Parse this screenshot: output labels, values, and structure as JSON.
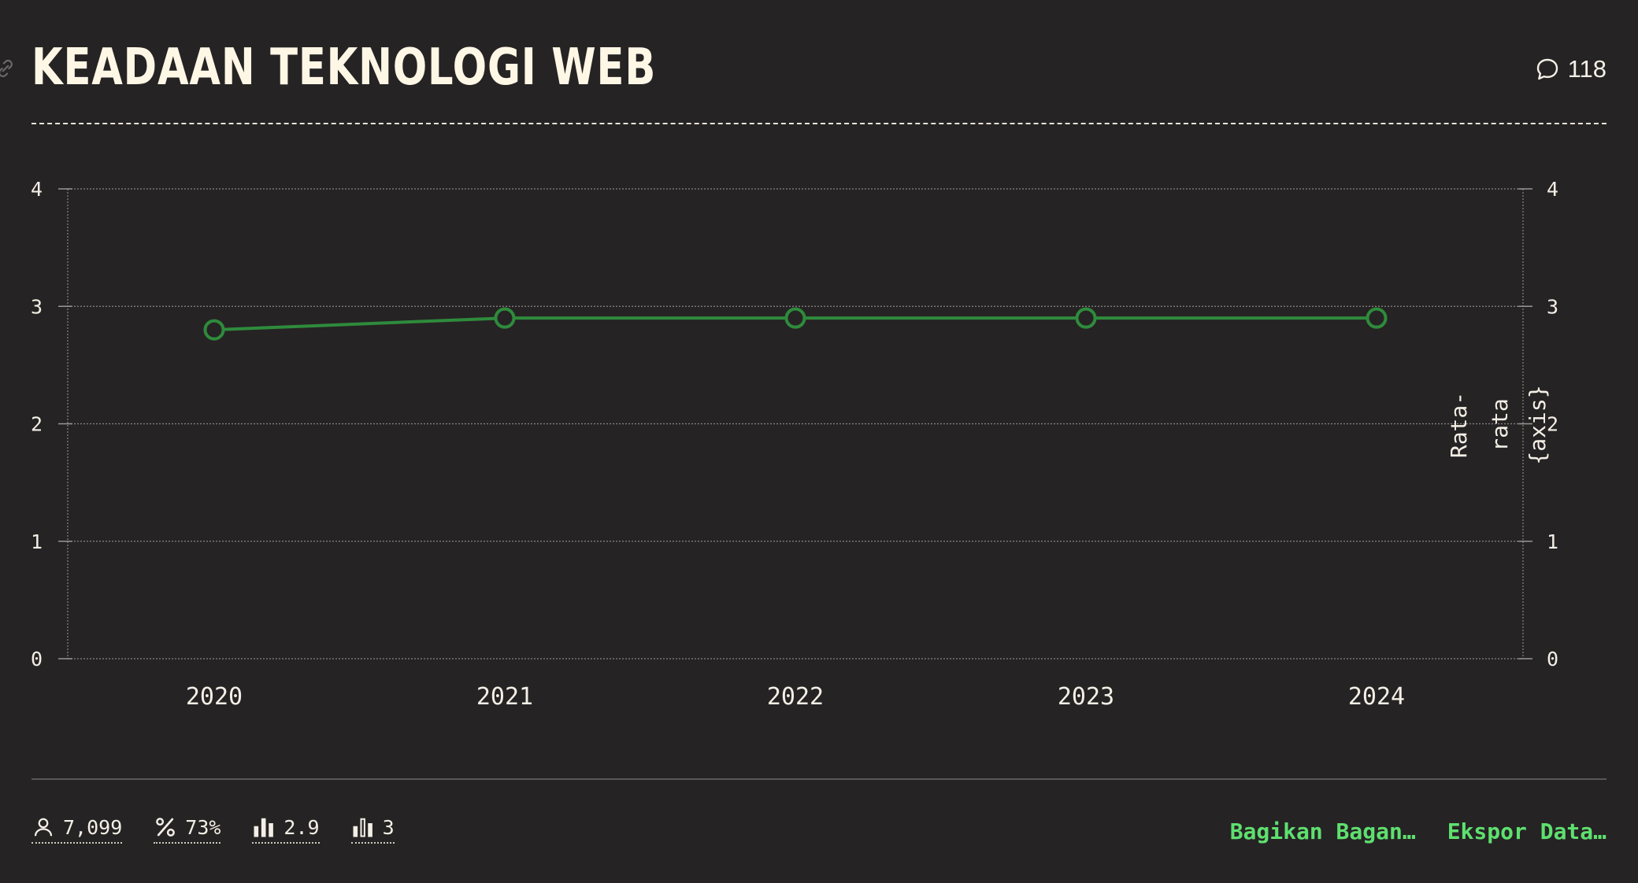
{
  "header": {
    "title": "KEADAAN TEKNOLOGI WEB",
    "comment_count": "118"
  },
  "chart_data": {
    "type": "line",
    "x": [
      "2020",
      "2021",
      "2022",
      "2023",
      "2024"
    ],
    "series": [
      {
        "values": [
          2.8,
          2.9,
          2.9,
          2.9,
          2.9
        ],
        "color": "#2e8b3c"
      }
    ],
    "ylim": [
      0,
      4
    ],
    "yticks": [
      0,
      1,
      2,
      3,
      4
    ],
    "right_axis_ticks": [
      0,
      1,
      2,
      3,
      4
    ],
    "right_axis_label_lines": [
      "Rata-",
      "rata",
      "{axis}"
    ],
    "grid": true,
    "legend": "none"
  },
  "footer": {
    "stats": [
      {
        "icon": "person-icon",
        "value": "7,099"
      },
      {
        "icon": "percent-icon",
        "value": "73%"
      },
      {
        "icon": "bar-chart-icon",
        "value": "2.9"
      },
      {
        "icon": "bar-chart-outline-icon",
        "value": "3"
      }
    ],
    "share_label": "Bagikan Bagan…",
    "export_label": "Ekspor Data…"
  },
  "colors": {
    "background": "#262324",
    "text": "#f4efe6",
    "line": "#2e8b3c",
    "action": "#5ee06f"
  }
}
